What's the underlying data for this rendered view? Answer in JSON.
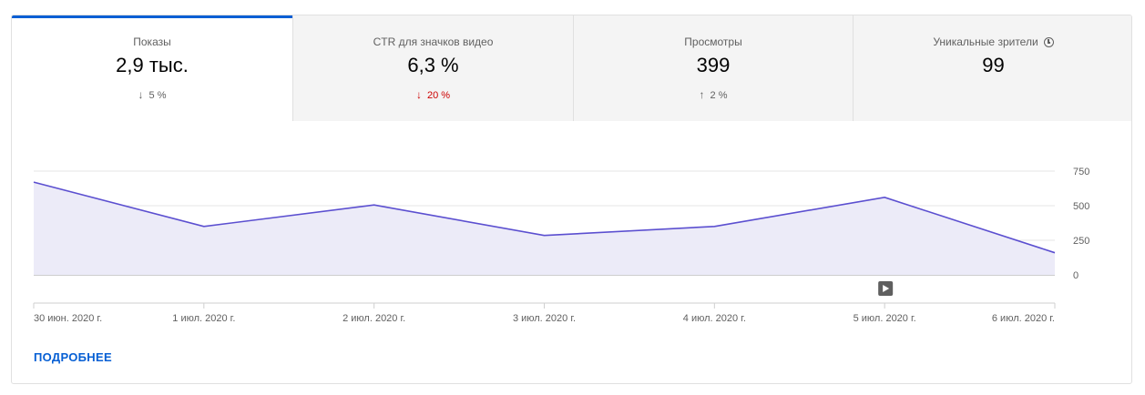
{
  "metrics": [
    {
      "label": "Показы",
      "value": "2,9 тыс.",
      "delta": "5 %",
      "direction": "down",
      "color": "#606060"
    },
    {
      "label": "CTR для значков видео",
      "value": "6,3 %",
      "delta": "20 %",
      "direction": "down",
      "color": "#cc0000"
    },
    {
      "label": "Просмотры",
      "value": "399",
      "delta": "2 %",
      "direction": "up",
      "color": "#606060"
    },
    {
      "label": "Уникальные зрители",
      "value": "99",
      "delta": "",
      "icon": "clock-info-icon"
    }
  ],
  "chart_data": {
    "type": "area",
    "x": [
      "30 июн. 2020 г.",
      "1 июл. 2020 г.",
      "2 июл. 2020 г.",
      "3 июл. 2020 г.",
      "4 июл. 2020 г.",
      "5 июл. 2020 г.",
      "6 июл. 2020 г."
    ],
    "values": [
      670,
      350,
      505,
      285,
      350,
      560,
      160
    ],
    "y_ticks": [
      "750",
      "500",
      "250",
      "0"
    ],
    "ylim": [
      0,
      750
    ],
    "grid": true,
    "line_color": "#5b4fd0",
    "fill_color": "#ecebf8",
    "marker": {
      "x_index": 5,
      "icon": "play-icon"
    }
  },
  "footer": {
    "more_label": "ПОДРОБНЕЕ"
  }
}
